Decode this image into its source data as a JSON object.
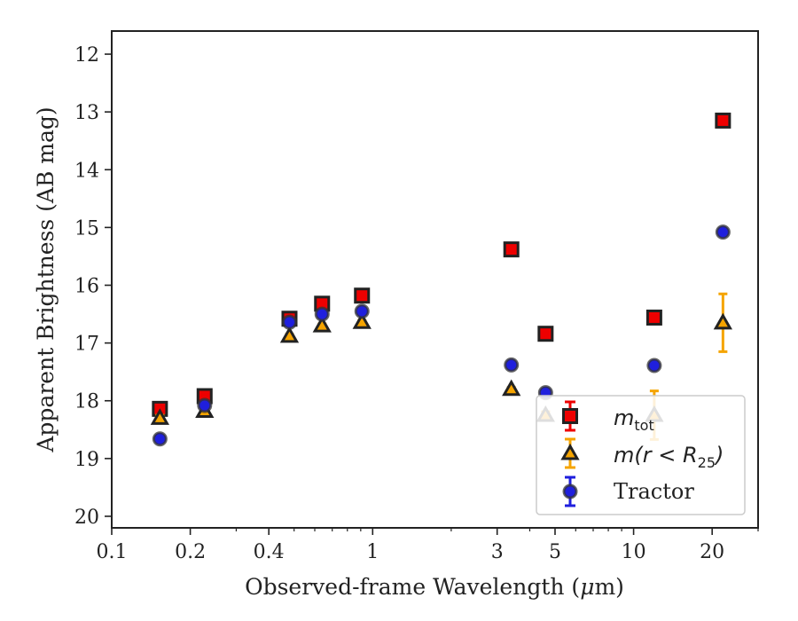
{
  "chart_data": {
    "type": "scatter",
    "xscale": "log",
    "xlim": [
      0.1,
      30
    ],
    "ylim": [
      20.2,
      11.6
    ],
    "y_inverted": true,
    "xlabel_text": "Observed-frame Wavelength (",
    "xlabel_mu": "μ",
    "xlabel_unit": "m)",
    "ylabel": "Apparent Brightness (AB mag)",
    "xticks": [
      {
        "value": 0.1,
        "label": "0.1"
      },
      {
        "value": 0.2,
        "label": "0.2"
      },
      {
        "value": 0.4,
        "label": "0.4"
      },
      {
        "value": 1,
        "label": "1"
      },
      {
        "value": 3,
        "label": "3"
      },
      {
        "value": 5,
        "label": "5"
      },
      {
        "value": 10,
        "label": "10"
      },
      {
        "value": 20,
        "label": "20"
      }
    ],
    "yticks": [
      {
        "value": 12,
        "label": "12"
      },
      {
        "value": 13,
        "label": "13"
      },
      {
        "value": 14,
        "label": "14"
      },
      {
        "value": 15,
        "label": "15"
      },
      {
        "value": 16,
        "label": "16"
      },
      {
        "value": 17,
        "label": "17"
      },
      {
        "value": 18,
        "label": "18"
      },
      {
        "value": 19,
        "label": "19"
      },
      {
        "value": 20,
        "label": "20"
      }
    ],
    "legend_position": "lower-right",
    "series": [
      {
        "name": "m_tot",
        "legend_main": "m",
        "legend_sub": "tot",
        "marker": "square",
        "color": "#ee0000",
        "edge_color": "#222222",
        "points": [
          {
            "x": 0.153,
            "y": 18.14,
            "err": 0.05
          },
          {
            "x": 0.227,
            "y": 17.92,
            "err": 0.05
          },
          {
            "x": 0.48,
            "y": 16.58,
            "err": 0.03
          },
          {
            "x": 0.64,
            "y": 16.32,
            "err": 0.03
          },
          {
            "x": 0.91,
            "y": 16.18,
            "err": 0.03
          },
          {
            "x": 3.4,
            "y": 15.38,
            "err": 0.03
          },
          {
            "x": 4.6,
            "y": 16.84,
            "err": 0.04
          },
          {
            "x": 12.0,
            "y": 16.56,
            "err": 0.04
          },
          {
            "x": 22.0,
            "y": 13.15,
            "err": 0.03
          }
        ]
      },
      {
        "name": "m(r < R25)",
        "legend_main": "m(r < R",
        "legend_sub": "25",
        "legend_close": ")",
        "marker": "triangle",
        "color": "#f5a400",
        "edge_color": "#222222",
        "points": [
          {
            "x": 0.153,
            "y": 18.3,
            "err": 0.05
          },
          {
            "x": 0.227,
            "y": 18.18,
            "err": 0.05
          },
          {
            "x": 0.48,
            "y": 16.88,
            "err": 0.03
          },
          {
            "x": 0.64,
            "y": 16.7,
            "err": 0.03
          },
          {
            "x": 0.91,
            "y": 16.64,
            "err": 0.03
          },
          {
            "x": 3.4,
            "y": 17.8,
            "err": 0.03
          },
          {
            "x": 4.6,
            "y": 18.25,
            "err": 0.06
          },
          {
            "x": 12.0,
            "y": 18.25,
            "err": 0.42
          },
          {
            "x": 22.0,
            "y": 16.65,
            "err": 0.5
          }
        ]
      },
      {
        "name": "Tractor",
        "legend_main": "Tractor",
        "marker": "circle",
        "color": "#1f1fdd",
        "edge_color": "#333333",
        "points": [
          {
            "x": 0.153,
            "y": 18.66,
            "err": 0.05
          },
          {
            "x": 0.227,
            "y": 18.08,
            "err": 0.05
          },
          {
            "x": 0.48,
            "y": 16.64,
            "err": 0.03
          },
          {
            "x": 0.64,
            "y": 16.5,
            "err": 0.03
          },
          {
            "x": 0.91,
            "y": 16.45,
            "err": 0.03
          },
          {
            "x": 3.4,
            "y": 17.38,
            "err": 0.03
          },
          {
            "x": 4.6,
            "y": 17.86,
            "err": 0.05
          },
          {
            "x": 12.0,
            "y": 17.39,
            "err": 0.05
          },
          {
            "x": 22.0,
            "y": 15.08,
            "err": 0.04
          }
        ]
      }
    ]
  }
}
